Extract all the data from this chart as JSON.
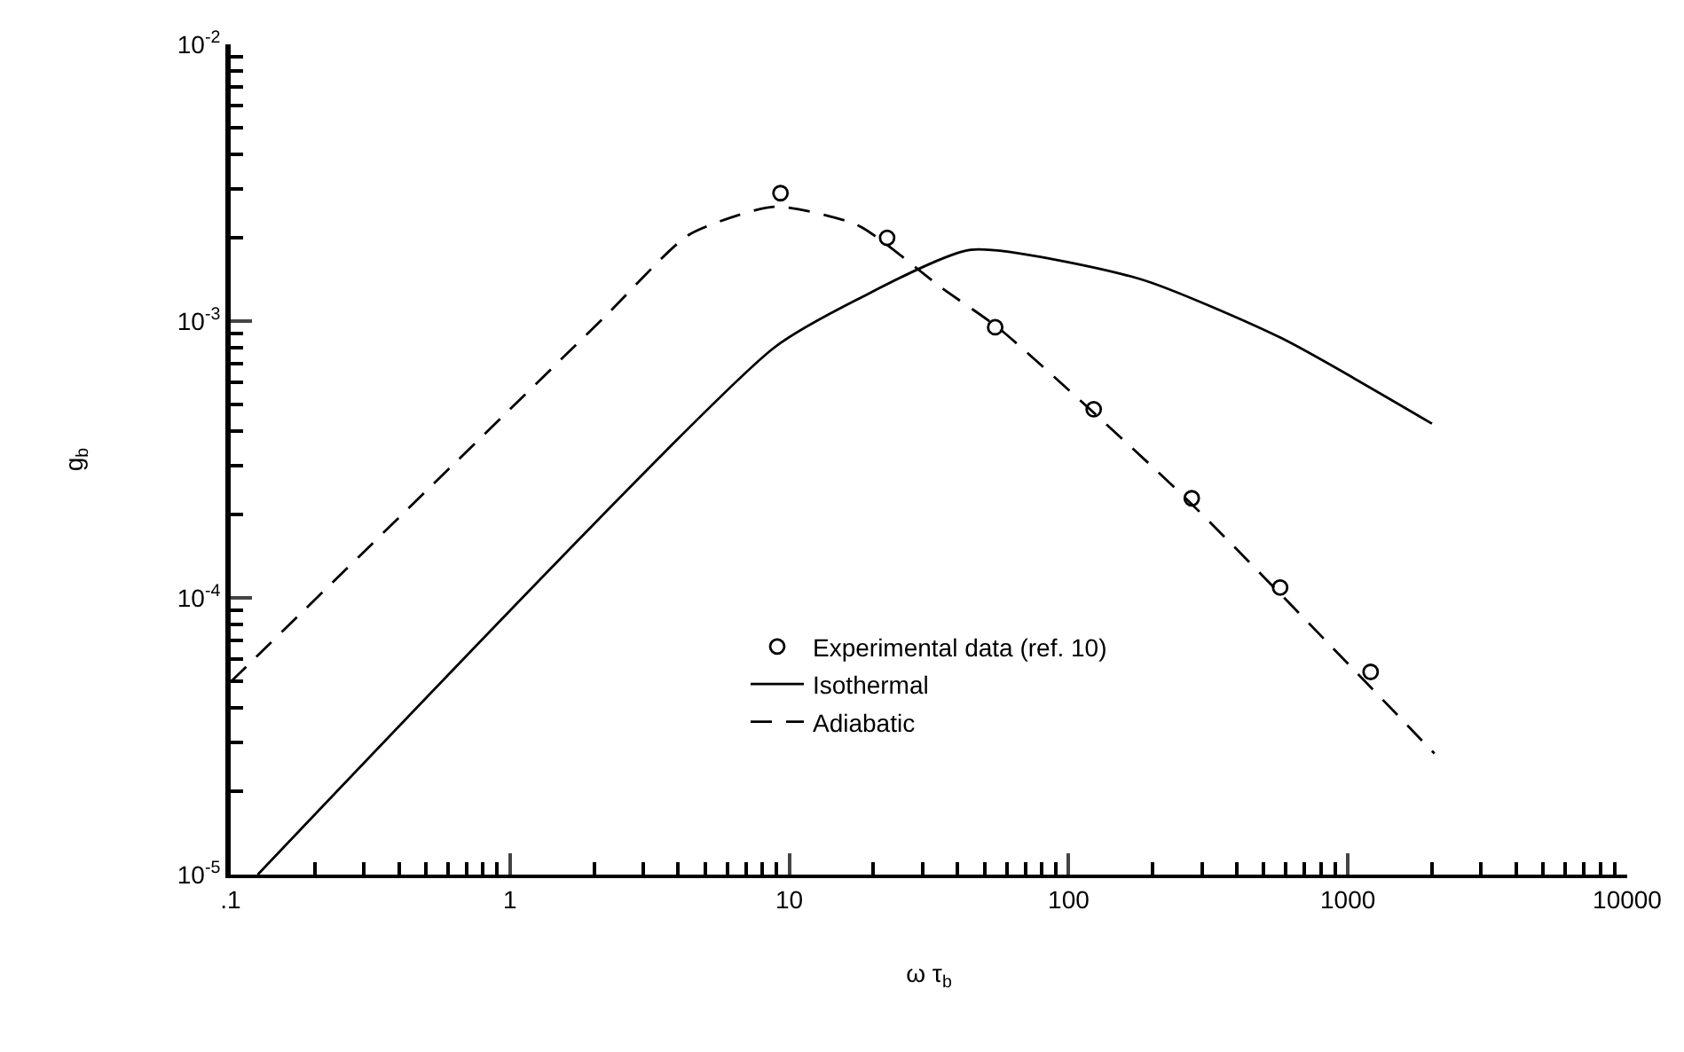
{
  "chart_data": {
    "type": "line",
    "xlabel": "ω τ$_{b}$",
    "ylabel": "g$_{b}$",
    "log": "xy",
    "grid": false,
    "legend": "bottom",
    "xlim": [
      0.1,
      10000
    ],
    "xticks": [
      {
        "value": 0.1,
        "label": ".1"
      },
      1,
      10,
      100,
      1000,
      10000
    ],
    "ylim": [
      1e-05,
      0.01
    ],
    "yticks": [
      {
        "value": 0.01,
        "label": "10$^{-2}$"
      },
      {
        "value": 0.001,
        "label": "10$^{-3}$"
      },
      {
        "value": 0.0001,
        "label": "10$^{-4}$"
      },
      {
        "value": 1e-05,
        "label": "10$^{-5}$"
      }
    ],
    "series": [
      {
        "name": "Experimental data (ref. 10)",
        "type": "scatter",
        "marker": "circle",
        "color": "#000000",
        "x": [
          9.3,
          22.4,
          54.6,
          123,
          276,
          572,
          1206
        ],
        "values": [
          0.0029,
          0.002,
          0.00095,
          0.00048,
          0.000229,
          0.000109,
          5.4e-05
        ]
      },
      {
        "name": "Isothermal",
        "type": "line",
        "line_style": "solid",
        "color": "#000000",
        "x": [
          0.125,
          8.8,
          17.6,
          44.6,
          180,
          575,
          2000
        ],
        "values": [
          1e-05,
          0.0008,
          0.0012,
          0.00181,
          0.00142,
          0.00087,
          0.000426
        ]
      },
      {
        "name": "Adiabatic",
        "type": "line",
        "line_style": "dashed",
        "color": "#000000",
        "x": [
          0.1,
          2.17,
          4.37,
          8.8,
          17.6,
          35.4,
          56.4,
          265,
          2040
        ],
        "values": [
          4.97e-05,
          0.00103,
          0.00205,
          0.00259,
          0.00222,
          0.00131,
          0.00094,
          0.000227,
          2.74e-05
        ]
      }
    ]
  }
}
